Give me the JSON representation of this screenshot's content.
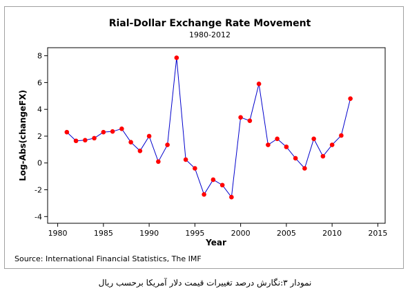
{
  "chart_data": {
    "type": "line",
    "title": "Rial-Dollar Exchange Rate Movement",
    "subtitle": "1980-2012",
    "xlabel": "Year",
    "ylabel": "Log-Abs(changeFX)",
    "xlim": [
      1978.9,
      2015.8
    ],
    "ylim": [
      -4.5,
      8.6
    ],
    "xticks": [
      1980,
      1985,
      1990,
      1995,
      2000,
      2005,
      2010,
      2015
    ],
    "yticks": [
      -4,
      -2,
      0,
      2,
      4,
      6,
      8
    ],
    "grid": false,
    "line_color": "#0000cc",
    "marker_color": "#ff0000",
    "x": [
      1981,
      1982,
      1983,
      1984,
      1985,
      1986,
      1987,
      1988,
      1989,
      1990,
      1991,
      1992,
      1993,
      1994,
      1995,
      1996,
      1997,
      1998,
      1999,
      2000,
      2001,
      2002,
      2003,
      2004,
      2005,
      2006,
      2007,
      2008,
      2009,
      2010,
      2011,
      2012
    ],
    "y": [
      2.3,
      1.65,
      1.7,
      1.85,
      2.3,
      2.35,
      2.55,
      1.55,
      0.9,
      2.0,
      0.1,
      1.35,
      7.85,
      0.25,
      -0.4,
      -2.35,
      -1.25,
      -1.65,
      -2.55,
      3.4,
      3.15,
      5.9,
      1.35,
      1.8,
      1.2,
      0.35,
      -0.4,
      1.8,
      0.5,
      1.35,
      2.05,
      4.8
    ],
    "source": "Source: International Financial Statistics, The IMF"
  },
  "caption": "نمودار ۳:نگارش درصد تغییرات قیمت دلار آمریکا برحسب ریال"
}
